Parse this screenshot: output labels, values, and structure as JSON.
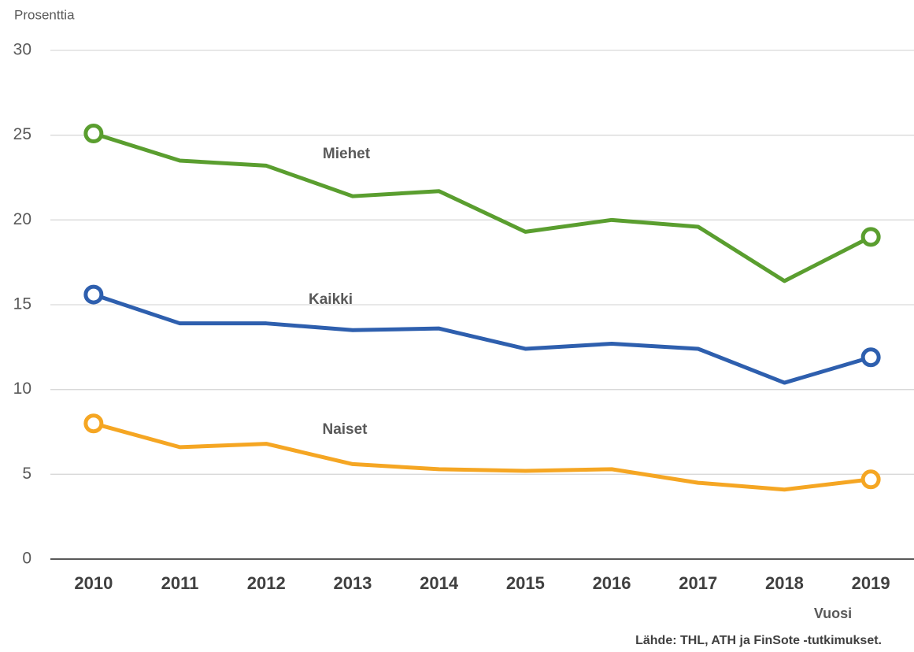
{
  "chart_data": {
    "type": "line",
    "y_label": "Prosenttia",
    "x_label": "Vuosi",
    "source": "Lähde: THL, ATH ja FinSote -tutkimukset.",
    "categories": [
      "2010",
      "2011",
      "2012",
      "2013",
      "2014",
      "2015",
      "2016",
      "2017",
      "2018",
      "2019"
    ],
    "series": [
      {
        "name": "Miehet",
        "color": "#5a9e2f",
        "values": [
          25.1,
          23.5,
          23.2,
          21.4,
          21.7,
          19.3,
          20.0,
          19.6,
          16.4,
          19.0
        ]
      },
      {
        "name": "Kaikki",
        "color": "#2e5fae",
        "values": [
          15.6,
          13.9,
          13.9,
          13.5,
          13.6,
          12.4,
          12.7,
          12.4,
          10.4,
          11.9
        ]
      },
      {
        "name": "Naiset",
        "color": "#f5a623",
        "values": [
          8.0,
          6.6,
          6.8,
          5.6,
          5.3,
          5.2,
          5.3,
          4.5,
          4.1,
          4.7
        ]
      }
    ],
    "ylim": [
      0,
      30
    ],
    "yticks": [
      0,
      5,
      10,
      15,
      20,
      25,
      30
    ],
    "grid": true
  }
}
